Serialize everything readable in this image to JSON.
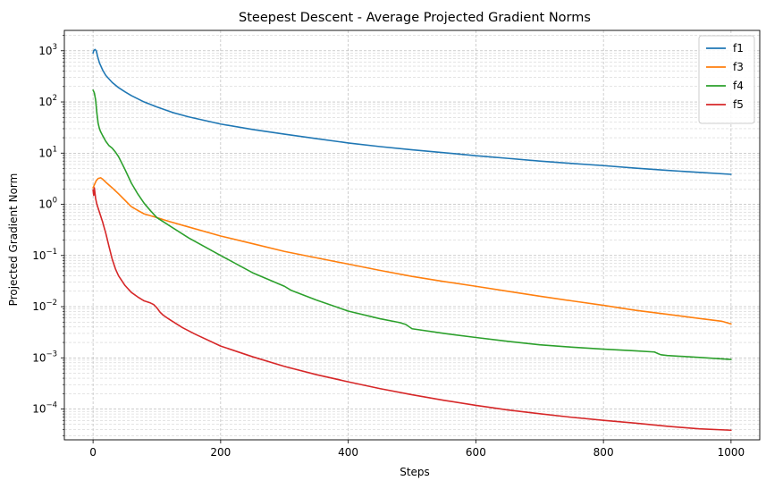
{
  "chart_data": {
    "type": "line",
    "title": "Steepest Descent - Average Projected Gradient Norms",
    "xlabel": "Steps",
    "ylabel": "Projected Gradient Norm",
    "xlim": [
      -45,
      1045
    ],
    "ylim": [
      2.5e-05,
      2500
    ],
    "yscale": "log",
    "x_ticks": [
      0,
      200,
      400,
      600,
      800,
      1000
    ],
    "y_ticks": [
      {
        "value": 0.0001,
        "base": "10",
        "exp": "−4"
      },
      {
        "value": 0.001,
        "base": "10",
        "exp": "−3"
      },
      {
        "value": 0.01,
        "base": "10",
        "exp": "−2"
      },
      {
        "value": 0.1,
        "base": "10",
        "exp": "−1"
      },
      {
        "value": 1,
        "base": "10",
        "exp": "0"
      },
      {
        "value": 10,
        "base": "10",
        "exp": "1"
      },
      {
        "value": 100,
        "base": "10",
        "exp": "2"
      },
      {
        "value": 1000,
        "base": "10",
        "exp": "3"
      }
    ],
    "grid": "both-major-minor-dashed",
    "legend_position": "top-right",
    "series": [
      {
        "name": "f1",
        "color": "#1f77b4",
        "x": [
          0,
          1,
          3,
          5,
          7,
          10,
          15,
          20,
          30,
          40,
          50,
          60,
          80,
          100,
          125,
          150,
          200,
          250,
          300,
          350,
          400,
          450,
          500,
          550,
          600,
          650,
          700,
          750,
          800,
          850,
          900,
          950,
          1000
        ],
        "y": [
          900,
          1000,
          1060,
          1000,
          780,
          580,
          420,
          330,
          240,
          190,
          158,
          133,
          100,
          80,
          62,
          51,
          37,
          29,
          23.5,
          19.2,
          15.8,
          13.4,
          11.6,
          10.2,
          8.9,
          7.9,
          7.0,
          6.3,
          5.7,
          5.1,
          4.6,
          4.2,
          3.85
        ]
      },
      {
        "name": "f3",
        "color": "#ff7f0e",
        "x": [
          0,
          2,
          5,
          8,
          12,
          15,
          20,
          30,
          40,
          50,
          60,
          70,
          80,
          100,
          120,
          150,
          200,
          250,
          300,
          350,
          400,
          450,
          500,
          550,
          600,
          650,
          700,
          750,
          800,
          850,
          900,
          950,
          985,
          990,
          1000
        ],
        "y": [
          2.1,
          2.4,
          2.9,
          3.2,
          3.3,
          3.1,
          2.7,
          2.1,
          1.6,
          1.2,
          0.9,
          0.76,
          0.65,
          0.55,
          0.46,
          0.36,
          0.24,
          0.17,
          0.12,
          0.09,
          0.068,
          0.051,
          0.039,
          0.031,
          0.025,
          0.02,
          0.016,
          0.013,
          0.0106,
          0.0085,
          0.0071,
          0.0059,
          0.0052,
          0.005,
          0.0046
        ]
      },
      {
        "name": "f4",
        "color": "#2ca02c",
        "x": [
          0,
          2,
          4,
          6,
          8,
          10,
          12,
          15,
          20,
          25,
          30,
          35,
          40,
          50,
          60,
          70,
          80,
          90,
          100,
          120,
          150,
          200,
          250,
          300,
          310,
          350,
          400,
          450,
          480,
          490,
          500,
          550,
          600,
          650,
          700,
          750,
          800,
          850,
          880,
          885,
          890,
          900,
          950,
          1000
        ],
        "y": [
          170,
          150,
          110,
          60,
          38,
          30,
          26,
          22,
          17,
          14,
          12.5,
          10.5,
          8.5,
          4.8,
          2.6,
          1.6,
          1.05,
          0.75,
          0.55,
          0.38,
          0.22,
          0.1,
          0.046,
          0.025,
          0.021,
          0.0135,
          0.0082,
          0.0058,
          0.0049,
          0.0045,
          0.0037,
          0.003,
          0.0025,
          0.0021,
          0.0018,
          0.00162,
          0.00148,
          0.00137,
          0.0013,
          0.00122,
          0.00115,
          0.00111,
          0.00102,
          0.00093
        ]
      },
      {
        "name": "f5",
        "color": "#d62728",
        "x": [
          0,
          1,
          2,
          4,
          6,
          10,
          15,
          20,
          25,
          30,
          35,
          40,
          50,
          60,
          70,
          80,
          90,
          95,
          100,
          105,
          110,
          120,
          140,
          160,
          200,
          250,
          300,
          350,
          400,
          450,
          500,
          550,
          600,
          650,
          700,
          750,
          800,
          850,
          900,
          950,
          1000
        ],
        "y": [
          1.9,
          1.5,
          2.1,
          1.3,
          1.0,
          0.7,
          0.45,
          0.27,
          0.15,
          0.085,
          0.055,
          0.04,
          0.026,
          0.019,
          0.0155,
          0.013,
          0.0118,
          0.011,
          0.0095,
          0.0078,
          0.0068,
          0.0056,
          0.0039,
          0.0029,
          0.0017,
          0.00105,
          0.00068,
          0.00047,
          0.00034,
          0.00025,
          0.00019,
          0.000148,
          0.000118,
          9.6e-05,
          8.1e-05,
          6.9e-05,
          6e-05,
          5.3e-05,
          4.6e-05,
          4.1e-05,
          3.85e-05
        ]
      }
    ]
  }
}
